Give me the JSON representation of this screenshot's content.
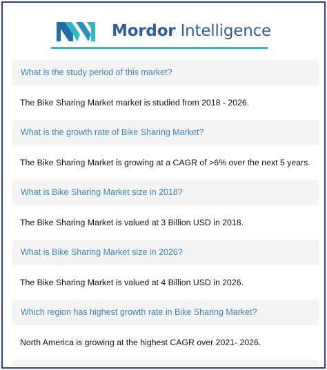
{
  "header": {
    "brand_bold": "Mordor",
    "brand_rest": " Intelligence",
    "colors": {
      "brand_blue": "#2e5f9e",
      "accent_teal": "#35b7c4",
      "frame_navy": "#2a3f8f"
    }
  },
  "faq": [
    {
      "question": "What is the study period of this market?",
      "answer": "The Bike Sharing Market market is studied from 2018 - 2026."
    },
    {
      "question": "What is the growth rate of Bike Sharing Market?",
      "answer": "The Bike Sharing Market is growing at a CAGR of >6% over the next 5 years."
    },
    {
      "question": "What is Bike Sharing Market size in 2018?",
      "answer": "The Bike Sharing Market is valued at 3 Billion USD in 2018."
    },
    {
      "question": "What is Bike Sharing Market size in 2026?",
      "answer": "The Bike Sharing Market is valued at 4 Billion USD in 2026."
    },
    {
      "question": "Which region has highest growth rate in Bike Sharing Market?",
      "answer": "North America is growing at the highest CAGR over 2021- 2026."
    }
  ]
}
